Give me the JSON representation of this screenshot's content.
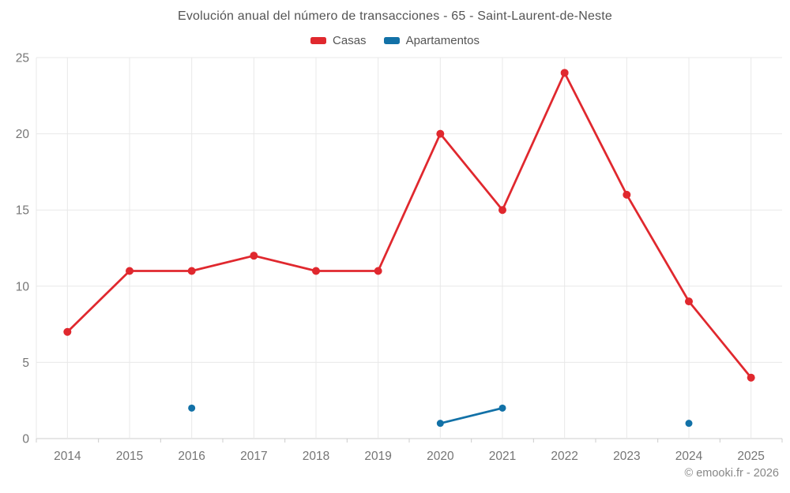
{
  "title": "Evolución anual del número de transacciones - 65 - Saint-Laurent-de-Neste",
  "footer": "© emooki.fr - 2026",
  "legend": {
    "items": [
      {
        "label": "Casas",
        "color": "#e0282e"
      },
      {
        "label": "Apartamentos",
        "color": "#1271a7"
      }
    ]
  },
  "colors": {
    "casas": "#e0282e",
    "apartamentos": "#1271a7",
    "gridline": "#e8e8e8",
    "axis_line": "#cccccc",
    "tick_text": "#757575",
    "title_text": "#545454",
    "footer_text": "#878787"
  },
  "chart_data": {
    "type": "line",
    "title": "Evolución anual del número de transacciones - 65 - Saint-Laurent-de-Neste",
    "xlabel": "",
    "ylabel": "",
    "x": [
      "2014",
      "2015",
      "2016",
      "2017",
      "2018",
      "2019",
      "2020",
      "2021",
      "2022",
      "2023",
      "2024",
      "2025"
    ],
    "series": [
      {
        "name": "Casas",
        "color": "#e0282e",
        "values": [
          7,
          11,
          11,
          12,
          11,
          11,
          20,
          15,
          24,
          16,
          9,
          4
        ]
      },
      {
        "name": "Apartamentos",
        "color": "#1271a7",
        "values": [
          null,
          null,
          2,
          null,
          null,
          null,
          1,
          2,
          null,
          null,
          1,
          null
        ]
      }
    ],
    "ylim": [
      0,
      25
    ],
    "yticks": [
      0,
      5,
      10,
      15,
      20,
      25
    ],
    "grid": true,
    "legend_position": "top"
  }
}
